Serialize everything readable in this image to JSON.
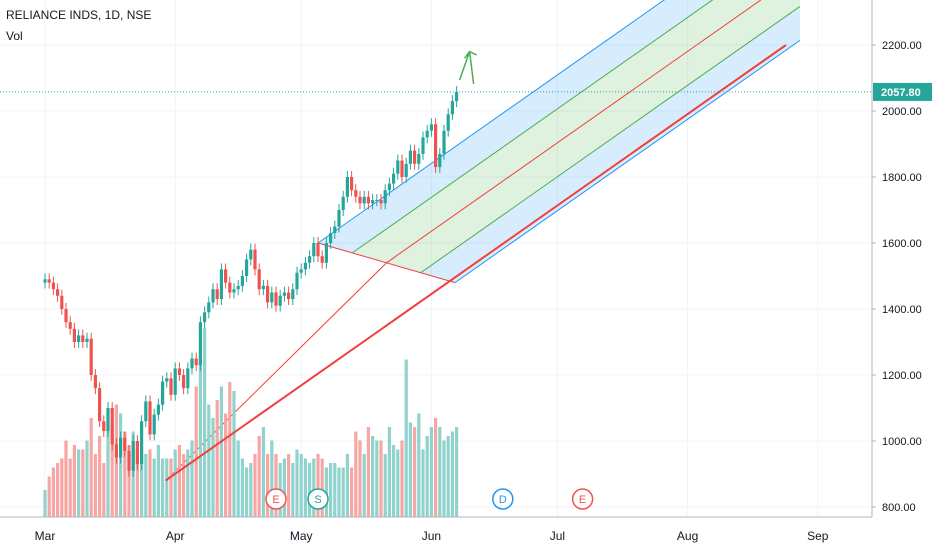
{
  "header": {
    "symbol": "RELIANCE INDS, 1D, NSE",
    "sub": "Vol"
  },
  "last_price_label": "2057.80",
  "colors": {
    "up": "#26a69a",
    "down": "#ef5350",
    "vol_up": "#8fd3cc",
    "vol_down": "#f6a6a5",
    "trend": "#f0403c",
    "price_line": "#26a69a"
  },
  "chart_data": {
    "type": "candlestick",
    "title": "",
    "ylim": [
      780,
      2320
    ],
    "y_ticks": [
      800,
      1000,
      1200,
      1400,
      1600,
      1800,
      2000,
      2200
    ],
    "y_tick_labels": [
      "800.00",
      "1000.00",
      "1200.00",
      "1400.00",
      "1600.00",
      "1800.00",
      "2000.00",
      "2200.00"
    ],
    "x_ticks": [
      {
        "day": 0,
        "label": "Mar"
      },
      {
        "day": 31,
        "label": "Apr"
      },
      {
        "day": 61,
        "label": "May"
      },
      {
        "day": 92,
        "label": "Jun"
      },
      {
        "day": 122,
        "label": "Jul"
      },
      {
        "day": 153,
        "label": "Aug"
      },
      {
        "day": 184,
        "label": "Sep"
      }
    ],
    "last_price": 2057.8,
    "closes": [
      1490,
      1480,
      1460,
      1440,
      1400,
      1360,
      1340,
      1300,
      1320,
      1300,
      1310,
      1200,
      1160,
      1060,
      1030,
      1100,
      990,
      950,
      1010,
      970,
      910,
      1000,
      930,
      1060,
      1120,
      1020,
      1080,
      1110,
      1180,
      1190,
      1140,
      1220,
      1200,
      1160,
      1220,
      1250,
      1230,
      1360,
      1390,
      1420,
      1460,
      1430,
      1520,
      1480,
      1450,
      1460,
      1470,
      1500,
      1550,
      1580,
      1520,
      1460,
      1470,
      1420,
      1450,
      1410,
      1440,
      1450,
      1430,
      1460,
      1510,
      1520,
      1540,
      1560,
      1600,
      1560,
      1540,
      1600,
      1630,
      1650,
      1700,
      1740,
      1800,
      1760,
      1740,
      1720,
      1740,
      1720,
      1730,
      1730,
      1720,
      1760,
      1780,
      1810,
      1850,
      1800,
      1840,
      1880,
      1840,
      1870,
      1920,
      1940,
      1960,
      1830,
      1870,
      1940,
      1990,
      2030,
      2057.8
    ],
    "volumes": [
      6,
      9,
      11,
      12,
      13,
      17,
      13,
      16,
      15,
      15,
      17,
      22,
      14,
      18,
      12,
      20,
      21,
      25,
      23,
      19,
      16,
      19,
      15,
      14,
      14,
      15,
      13,
      16,
      13,
      13,
      13,
      15,
      16,
      14,
      15,
      17,
      29,
      34,
      42,
      25,
      22,
      26,
      29,
      23,
      30,
      28,
      17,
      13,
      11,
      12,
      14,
      18,
      20,
      14,
      17,
      14,
      12,
      13,
      14,
      12,
      15,
      14,
      13,
      12,
      13,
      14,
      13,
      11,
      12,
      12,
      11,
      11,
      14,
      11,
      19,
      17,
      14,
      20,
      18,
      17,
      17,
      14,
      20,
      16,
      15,
      17,
      35,
      21,
      20,
      23,
      15,
      18,
      20,
      22,
      20,
      17,
      18,
      19,
      20
    ],
    "events": [
      {
        "label": "E",
        "day": 55
      },
      {
        "label": "S",
        "day": 65
      },
      {
        "label": "D",
        "day": 109
      },
      {
        "label": "E",
        "day": 128
      }
    ]
  }
}
